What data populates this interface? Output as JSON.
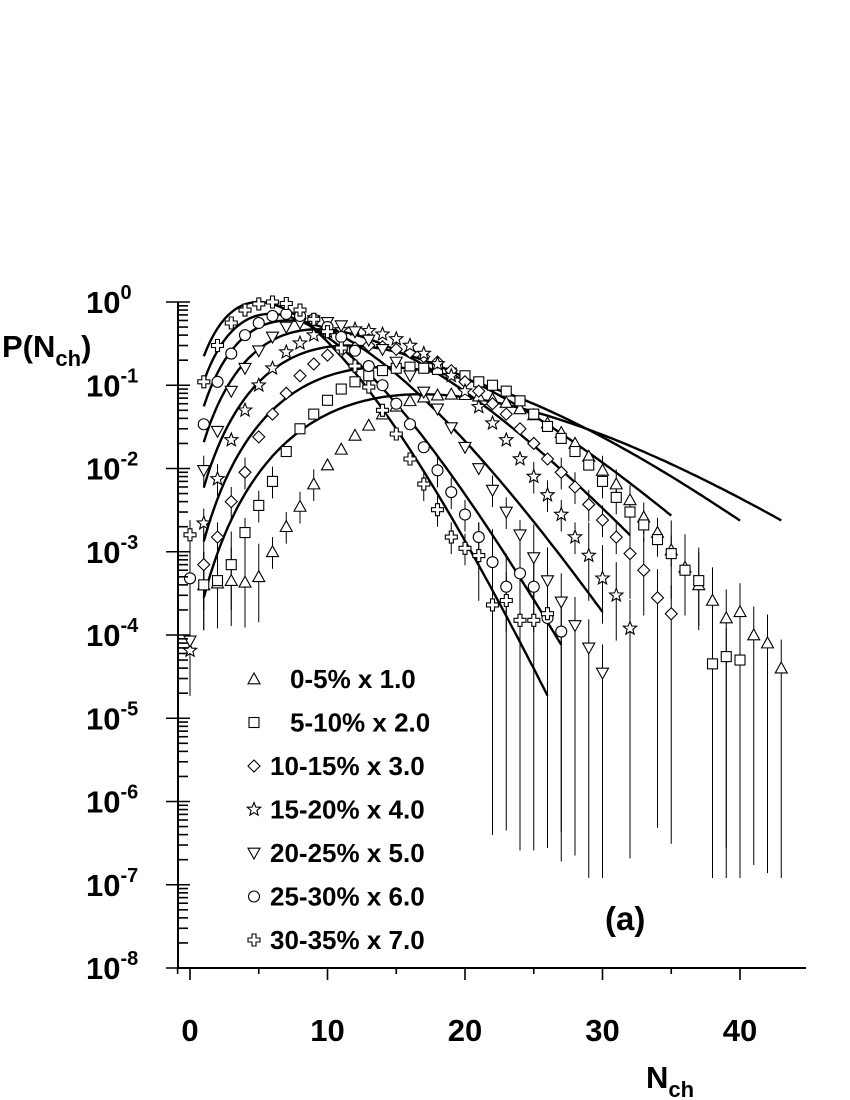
{
  "chart_data": {
    "type": "scatter",
    "title": "",
    "ylabel": "P(N",
    "ylabel_sub": "ch",
    "ylabel_suffix": ")",
    "xlabel": "N",
    "xlabel_sub": "ch",
    "panel_label": "(a)",
    "xlim": [
      -1,
      45
    ],
    "ylim": [
      1e-08,
      1
    ],
    "y_scale": "log",
    "x_ticks": [
      "0",
      "10",
      "20",
      "30",
      "40"
    ],
    "y_ticks": [
      {
        "base": "10",
        "exp": "0"
      },
      {
        "base": "10",
        "exp": "-1"
      },
      {
        "base": "10",
        "exp": "-2"
      },
      {
        "base": "10",
        "exp": "-3"
      },
      {
        "base": "10",
        "exp": "-4"
      },
      {
        "base": "10",
        "exp": "-5"
      },
      {
        "base": "10",
        "exp": "-6"
      },
      {
        "base": "10",
        "exp": "-7"
      },
      {
        "base": "10",
        "exp": "-8"
      }
    ],
    "grid": false,
    "legend_position": "bottom-left",
    "series": [
      {
        "name": "0-5% x 1.0",
        "marker": "triangle-up",
        "x": [
          1,
          2,
          3,
          4,
          5,
          6,
          7,
          8,
          9,
          10,
          11,
          12,
          13,
          14,
          15,
          16,
          17,
          18,
          19,
          20,
          21,
          22,
          23,
          24,
          25,
          26,
          27,
          28,
          29,
          30,
          31,
          32,
          33,
          34,
          35,
          36,
          37,
          38,
          39,
          40,
          41,
          42,
          43
        ],
        "y": [
          0.0004,
          0.00042,
          0.00045,
          0.00043,
          0.0005,
          0.001,
          0.002,
          0.0035,
          0.0065,
          0.011,
          0.017,
          0.025,
          0.033,
          0.045,
          0.056,
          0.065,
          0.072,
          0.076,
          0.078,
          0.077,
          0.074,
          0.068,
          0.062,
          0.052,
          0.044,
          0.035,
          0.027,
          0.02,
          0.014,
          0.0095,
          0.0065,
          0.0042,
          0.0026,
          0.0017,
          0.00105,
          0.00065,
          0.0004,
          0.00026,
          0.00016,
          0.00019,
          0.0001,
          8e-05,
          4e-05
        ],
        "fit_mean": 19.5,
        "fit_k": 9
      },
      {
        "name": "5-10% x 2.0",
        "marker": "square",
        "x": [
          1,
          2,
          3,
          4,
          5,
          6,
          7,
          8,
          9,
          10,
          11,
          12,
          13,
          14,
          15,
          16,
          17,
          18,
          19,
          20,
          21,
          22,
          23,
          24,
          25,
          26,
          27,
          28,
          29,
          30,
          31,
          32,
          33,
          34,
          35,
          36,
          37,
          38,
          39,
          40
        ],
        "y": [
          0.0004,
          0.00045,
          0.0007,
          0.0017,
          0.0036,
          0.007,
          0.016,
          0.03,
          0.045,
          0.066,
          0.09,
          0.11,
          0.13,
          0.15,
          0.16,
          0.165,
          0.16,
          0.155,
          0.14,
          0.13,
          0.11,
          0.1,
          0.085,
          0.065,
          0.045,
          0.032,
          0.023,
          0.016,
          0.011,
          0.007,
          0.0045,
          0.003,
          0.0021,
          0.0014,
          0.00095,
          0.0006,
          0.00045,
          4.5e-05,
          5.5e-05,
          5e-05
        ],
        "fit_mean": 16.5,
        "fit_k": 9
      },
      {
        "name": "10-15% x 3.0",
        "marker": "diamond",
        "x": [
          1,
          2,
          3,
          4,
          5,
          6,
          7,
          8,
          9,
          10,
          11,
          12,
          13,
          14,
          15,
          16,
          17,
          18,
          19,
          20,
          21,
          22,
          23,
          24,
          25,
          26,
          27,
          28,
          29,
          30,
          31,
          32,
          33,
          34,
          35
        ],
        "y": [
          0.0007,
          0.0015,
          0.004,
          0.009,
          0.024,
          0.045,
          0.08,
          0.13,
          0.18,
          0.23,
          0.26,
          0.28,
          0.3,
          0.29,
          0.27,
          0.25,
          0.22,
          0.19,
          0.15,
          0.11,
          0.085,
          0.06,
          0.045,
          0.03,
          0.02,
          0.013,
          0.009,
          0.006,
          0.0037,
          0.0024,
          0.0015,
          0.00095,
          0.0006,
          0.00028,
          0.00018
        ],
        "fit_mean": 13.5,
        "fit_k": 9
      },
      {
        "name": "15-20% x 4.0",
        "marker": "star",
        "x": [
          0,
          1,
          2,
          3,
          4,
          5,
          6,
          7,
          8,
          9,
          10,
          11,
          12,
          13,
          14,
          15,
          16,
          17,
          18,
          19,
          20,
          21,
          22,
          23,
          24,
          25,
          26,
          27,
          28,
          29,
          30,
          31,
          32
        ],
        "y": [
          6.5e-05,
          0.0022,
          0.0075,
          0.022,
          0.05,
          0.1,
          0.16,
          0.25,
          0.32,
          0.4,
          0.44,
          0.46,
          0.47,
          0.45,
          0.41,
          0.36,
          0.3,
          0.24,
          0.18,
          0.13,
          0.085,
          0.055,
          0.035,
          0.022,
          0.013,
          0.008,
          0.0048,
          0.0028,
          0.0015,
          0.0009,
          0.00048,
          0.0003,
          0.00012
        ],
        "fit_mean": 11,
        "fit_k": 9
      },
      {
        "name": "20-25% x 5.0",
        "marker": "triangle-down",
        "x": [
          0,
          1,
          2,
          3,
          4,
          5,
          6,
          7,
          8,
          9,
          10,
          11,
          12,
          13,
          14,
          15,
          16,
          17,
          18,
          19,
          20,
          21,
          22,
          23,
          24,
          25,
          26,
          27,
          28,
          29,
          30
        ],
        "y": [
          8.5e-05,
          0.0095,
          0.028,
          0.085,
          0.16,
          0.26,
          0.38,
          0.5,
          0.56,
          0.6,
          0.57,
          0.52,
          0.44,
          0.35,
          0.27,
          0.19,
          0.13,
          0.083,
          0.052,
          0.031,
          0.018,
          0.01,
          0.0055,
          0.003,
          0.0016,
          0.00085,
          0.00045,
          0.00025,
          0.00013,
          7e-05,
          3.5e-05
        ],
        "fit_mean": 8.5,
        "fit_k": 10
      },
      {
        "name": "25-30% x 6.0",
        "marker": "circle",
        "x": [
          0,
          1,
          2,
          3,
          4,
          5,
          6,
          7,
          8,
          9,
          10,
          11,
          12,
          13,
          14,
          15,
          16,
          17,
          18,
          19,
          20,
          21,
          22,
          23,
          24,
          25,
          26,
          27
        ],
        "y": [
          0.00048,
          0.034,
          0.11,
          0.24,
          0.4,
          0.56,
          0.68,
          0.72,
          0.68,
          0.62,
          0.5,
          0.38,
          0.26,
          0.17,
          0.1,
          0.06,
          0.034,
          0.018,
          0.0095,
          0.0052,
          0.0028,
          0.0015,
          0.00075,
          0.00038,
          0.00055,
          0.00038,
          0.00016,
          0.00011
        ],
        "fit_mean": 7,
        "fit_k": 11
      },
      {
        "name": "30-35% x 7.0",
        "marker": "cross",
        "x": [
          0,
          1,
          2,
          3,
          4,
          5,
          6,
          7,
          8,
          9,
          10,
          11,
          12,
          13,
          14,
          15,
          16,
          17,
          18,
          19,
          20,
          21,
          22,
          23,
          24,
          25,
          26
        ],
        "y": [
          0.0016,
          0.11,
          0.3,
          0.56,
          0.8,
          0.95,
          1.0,
          0.96,
          0.8,
          0.62,
          0.44,
          0.28,
          0.17,
          0.095,
          0.05,
          0.026,
          0.013,
          0.0065,
          0.0032,
          0.0015,
          0.0011,
          0.0009,
          0.00023,
          0.00026,
          0.00015,
          0.00015,
          0.00018
        ],
        "fit_mean": 6,
        "fit_k": 12
      }
    ]
  }
}
